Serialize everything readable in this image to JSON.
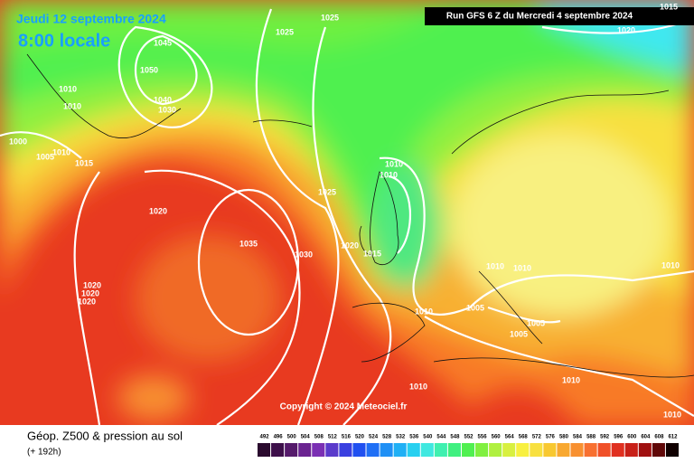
{
  "header": {
    "date": "Jeudi 12 septembre 2024",
    "time": "8:00 locale",
    "run": "Run GFS 6 Z du Mercredi 4 septembre 2024"
  },
  "copyright": "Copyright © 2024 Meteociel.fr",
  "isobar_labels": [
    "1025",
    "1025",
    "1015",
    "1020",
    "1045",
    "1050",
    "1010",
    "1010",
    "1040",
    "1030",
    "1000",
    "1005",
    "1010",
    "1015",
    "1010",
    "1010",
    "1025",
    "1020",
    "1035",
    "1030",
    "1020",
    "1015",
    "1010",
    "1010",
    "1010",
    "1020",
    "1020",
    "1020",
    "1010",
    "1005",
    "1005",
    "1005",
    "1010",
    "1010",
    "1010"
  ],
  "footer": {
    "title": "Géop. Z500 & pression au sol",
    "lead": "(+ 192h)"
  },
  "scale": {
    "labels": [
      "492",
      "496",
      "500",
      "504",
      "508",
      "512",
      "516",
      "520",
      "524",
      "528",
      "532",
      "536",
      "540",
      "544",
      "548",
      "552",
      "556",
      "560",
      "564",
      "568",
      "572",
      "576",
      "580",
      "584",
      "588",
      "592",
      "596",
      "600",
      "604",
      "608",
      "612"
    ],
    "colors": [
      "#2a0a2e",
      "#3d0f4a",
      "#551a6b",
      "#6a2390",
      "#7a2fb3",
      "#5a3acb",
      "#3a40e0",
      "#2050f0",
      "#1f6ff5",
      "#2090f5",
      "#20b0f5",
      "#28d0f0",
      "#40e8e0",
      "#40f0b0",
      "#40f080",
      "#50f050",
      "#80f040",
      "#b0f040",
      "#d8f040",
      "#f8f040",
      "#f8e040",
      "#f8c830",
      "#f8a830",
      "#f89030",
      "#f87030",
      "#f05028",
      "#e03020",
      "#c82018",
      "#a01010",
      "#600808",
      "#100000"
    ]
  }
}
